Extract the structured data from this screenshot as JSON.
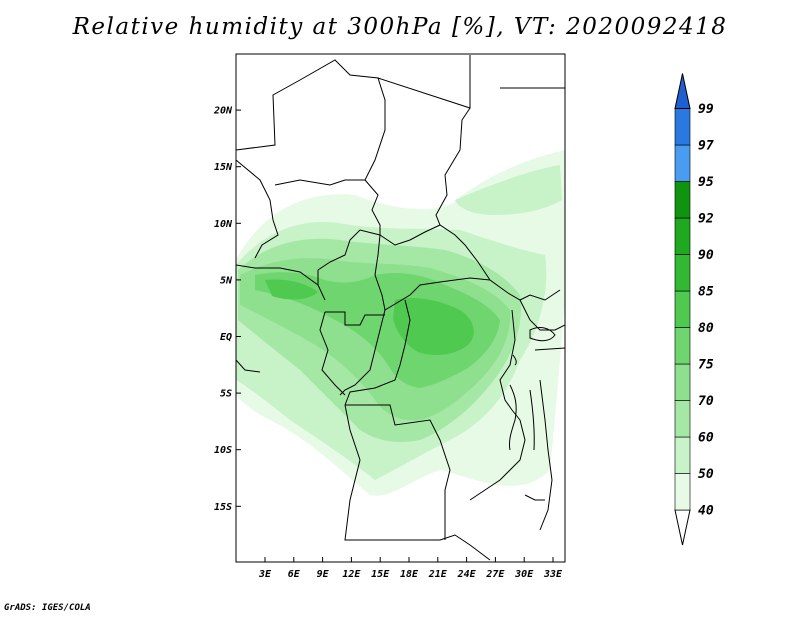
{
  "title": "Relative humidity at 300hPa [%], VT: 2020092418",
  "credit": "GrADS: IGES/COLA",
  "map": {
    "lat_ticks": [
      {
        "label": "20N",
        "lat": 20
      },
      {
        "label": "15N",
        "lat": 15
      },
      {
        "label": "10N",
        "lat": 10
      },
      {
        "label": "5N",
        "lat": 5
      },
      {
        "label": "EQ",
        "lat": 0
      },
      {
        "label": "5S",
        "lat": -5
      },
      {
        "label": "10S",
        "lat": -10
      },
      {
        "label": "15S",
        "lat": -15
      }
    ],
    "lon_ticks": [
      {
        "label": "3E",
        "lon": 3
      },
      {
        "label": "6E",
        "lon": 6
      },
      {
        "label": "9E",
        "lon": 9
      },
      {
        "label": "12E",
        "lon": 12
      },
      {
        "label": "15E",
        "lon": 15
      },
      {
        "label": "18E",
        "lon": 18
      },
      {
        "label": "21E",
        "lon": 21
      },
      {
        "label": "24E",
        "lon": 24
      },
      {
        "label": "27E",
        "lon": 27
      },
      {
        "label": "30E",
        "lon": 30
      },
      {
        "label": "33E",
        "lon": 33
      }
    ]
  },
  "colorbar": {
    "levels": [
      {
        "label": "40",
        "color": "#ffffff"
      },
      {
        "label": "50",
        "color": "#e6fae6"
      },
      {
        "label": "60",
        "color": "#c8f2c8"
      },
      {
        "label": "70",
        "color": "#a5e8a5"
      },
      {
        "label": "75",
        "color": "#8ee08e"
      },
      {
        "label": "80",
        "color": "#6fd66f"
      },
      {
        "label": "85",
        "color": "#4fc94f"
      },
      {
        "label": "90",
        "color": "#32b832"
      },
      {
        "label": "92",
        "color": "#20a820"
      },
      {
        "label": "95",
        "color": "#109410"
      },
      {
        "label": "97",
        "color": "#4a9cf0"
      },
      {
        "label": "99",
        "color": "#2a78e0"
      }
    ],
    "top_color": "#1f5fd0"
  }
}
